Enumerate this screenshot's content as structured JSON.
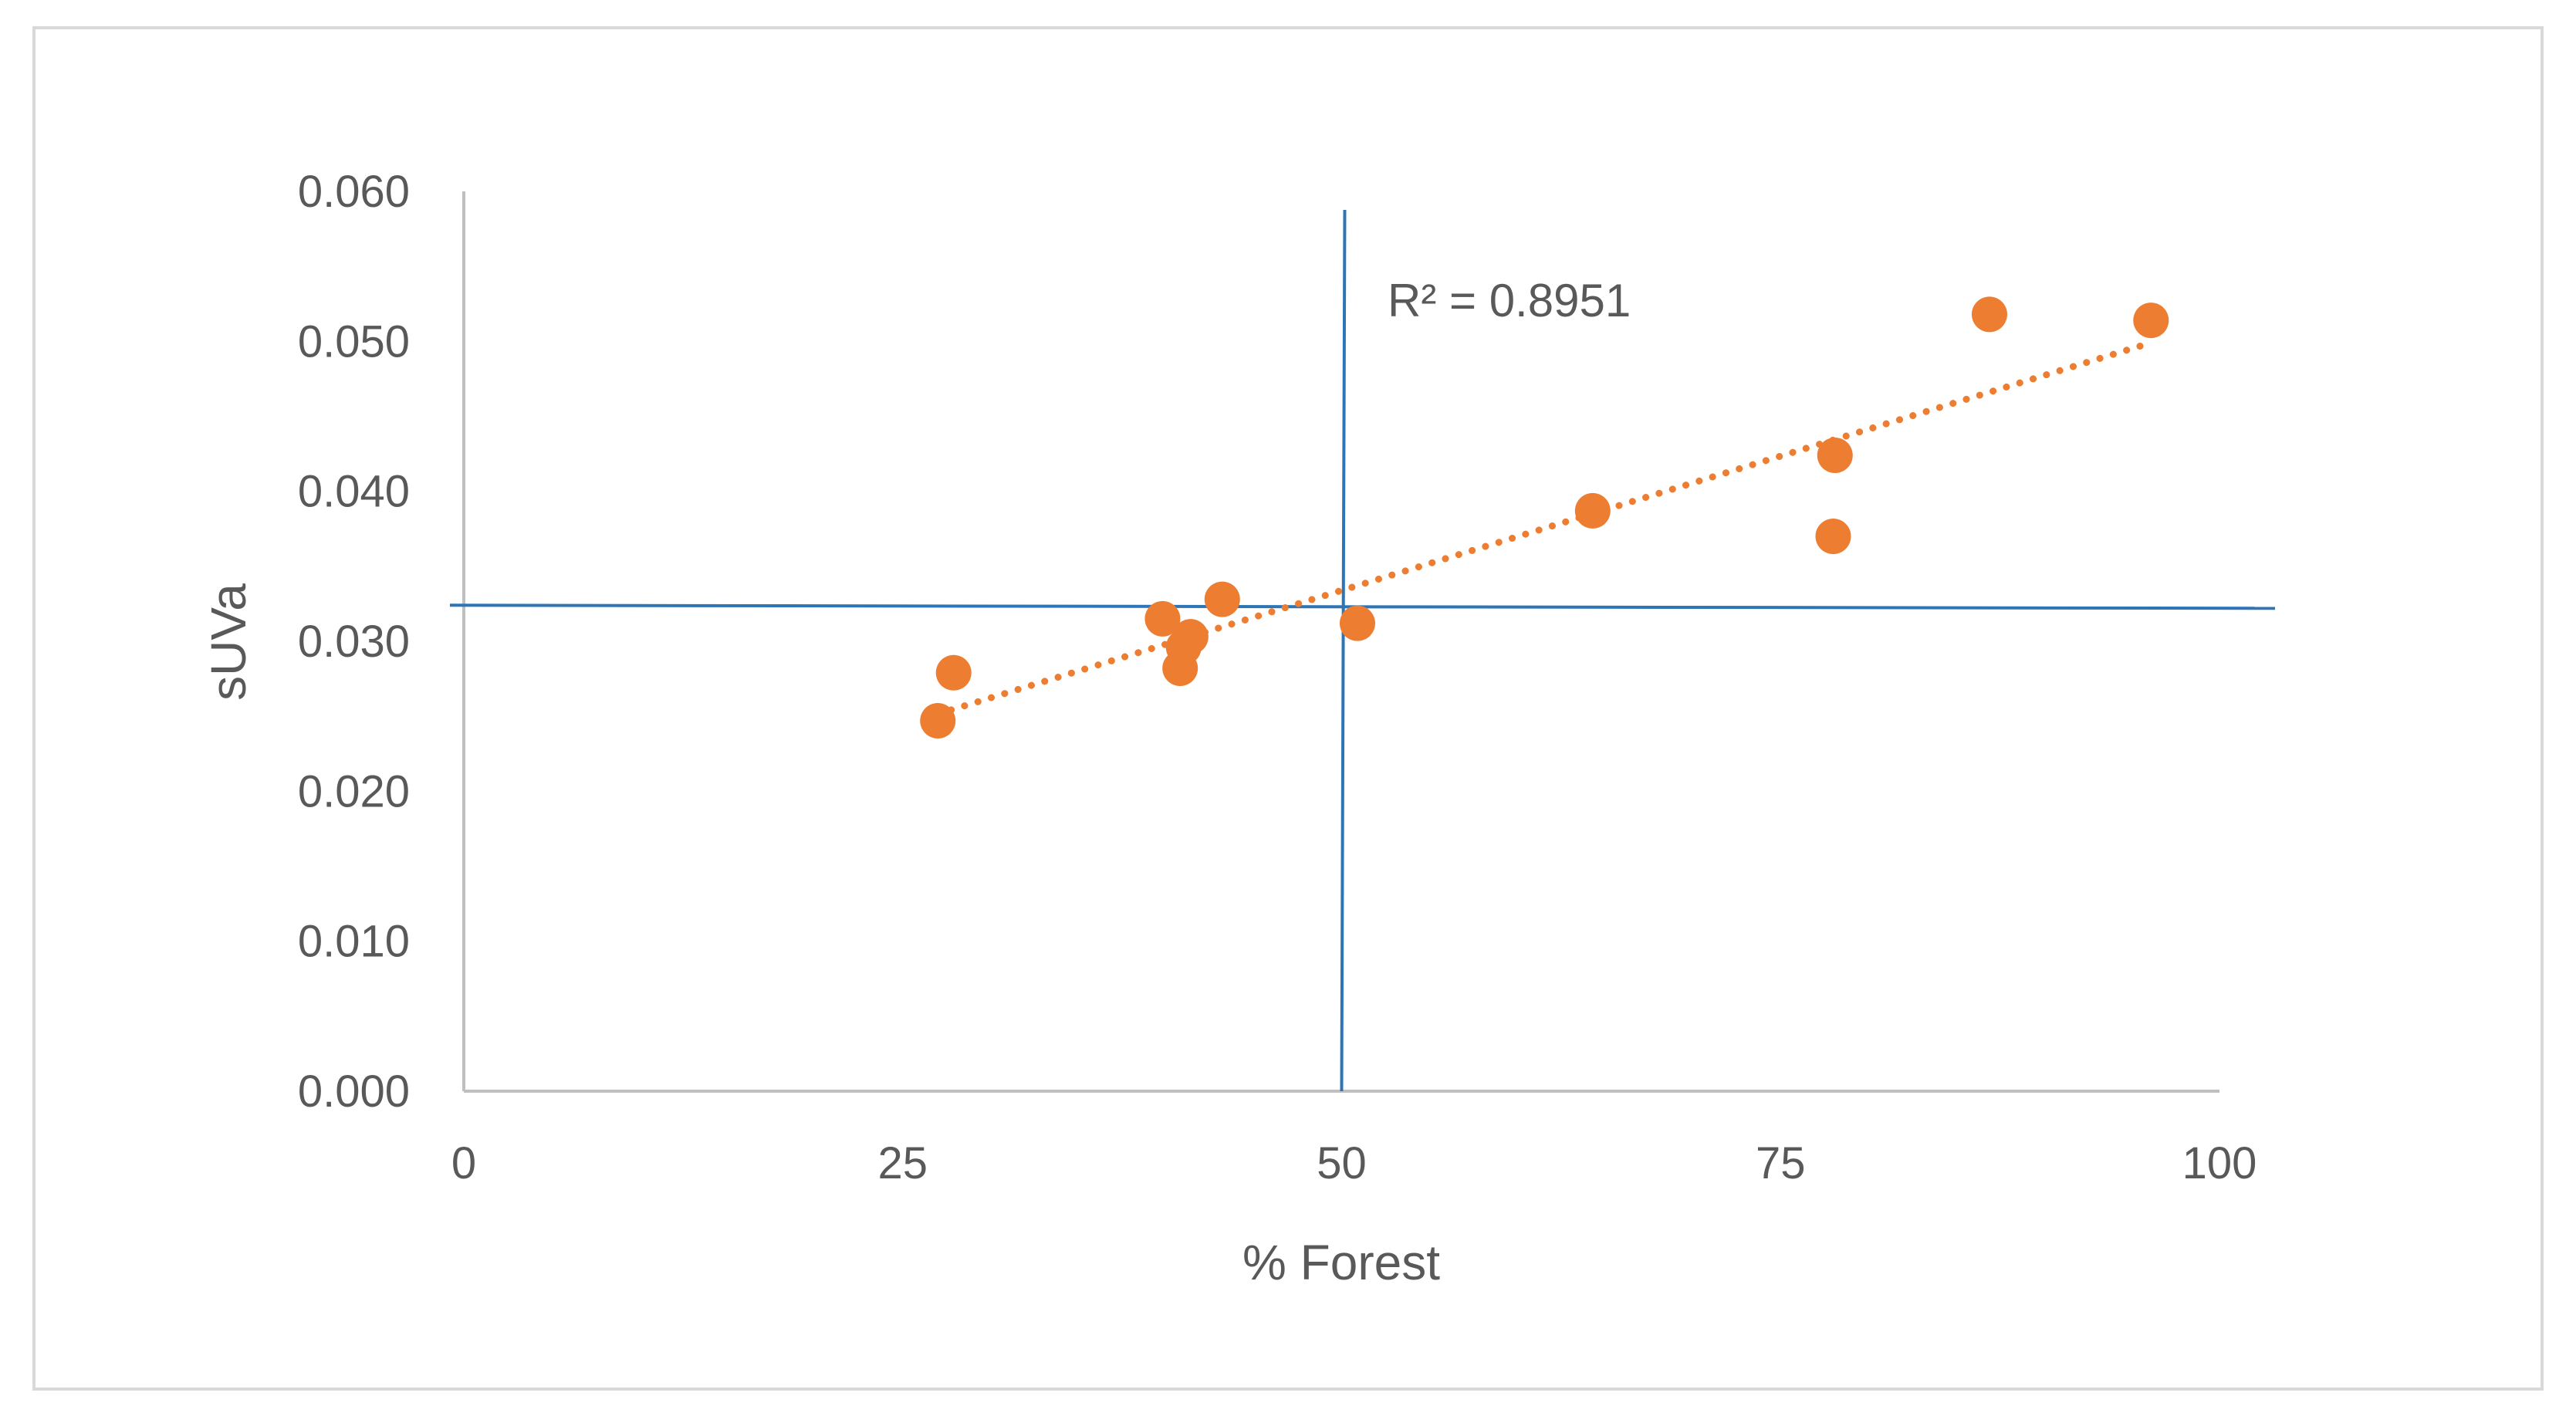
{
  "chart_data": {
    "type": "scatter",
    "title": "",
    "xlabel": "% Forest",
    "ylabel": "sUVa",
    "xlim": [
      0,
      100
    ],
    "ylim": [
      0,
      0.06
    ],
    "x_ticks": [
      "0",
      "25",
      "50",
      "75",
      "100"
    ],
    "y_ticks": [
      "0.000",
      "0.010",
      "0.020",
      "0.030",
      "0.040",
      "0.050",
      "0.060"
    ],
    "grid": false,
    "legend": "none",
    "series": [
      {
        "color": "#ED7D31",
        "points": [
          {
            "x": 27.0,
            "y": 0.0247
          },
          {
            "x": 27.9,
            "y": 0.0279
          },
          {
            "x": 39.8,
            "y": 0.0315
          },
          {
            "x": 40.8,
            "y": 0.0282
          },
          {
            "x": 41.0,
            "y": 0.0296
          },
          {
            "x": 41.4,
            "y": 0.0303
          },
          {
            "x": 43.2,
            "y": 0.0328
          },
          {
            "x": 50.9,
            "y": 0.0312
          },
          {
            "x": 64.3,
            "y": 0.0387
          },
          {
            "x": 78.0,
            "y": 0.037
          },
          {
            "x": 78.1,
            "y": 0.0424
          },
          {
            "x": 86.9,
            "y": 0.0518
          },
          {
            "x": 96.1,
            "y": 0.0514
          }
        ]
      }
    ],
    "trendline": {
      "type": "linear",
      "style": "dotted",
      "color": "#ED7D31",
      "x_range": [
        27.0,
        96.1
      ]
    },
    "annotations": [
      {
        "text": "R² = 0.8951"
      }
    ],
    "reference_lines": [
      {
        "orientation": "vertical",
        "value": 50,
        "color": "#2E75B6"
      },
      {
        "orientation": "horizontal",
        "value": 0.0323,
        "color": "#2E75B6"
      }
    ]
  }
}
